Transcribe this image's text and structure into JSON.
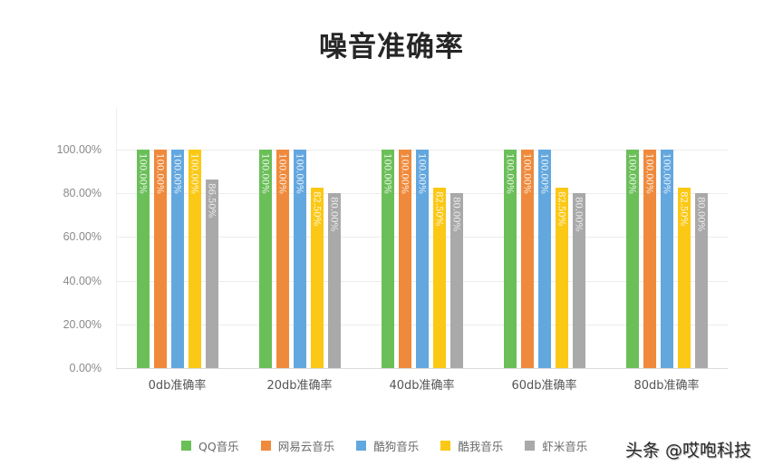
{
  "title": "噪音准确率",
  "watermark": "头条 @哎咆科技",
  "colors": {
    "QQ音乐": "#6bbf59",
    "网易云音乐": "#ef8a3c",
    "酷狗音乐": "#63a7df",
    "酷我音乐": "#fbc815",
    "虾米音乐": "#a9a9a9"
  },
  "y_axis": {
    "ticks": [
      "100.00%",
      "80.00%",
      "60.00%",
      "40.00%",
      "20.00%",
      "0.00%"
    ]
  },
  "x_axis": {
    "categories": [
      "0db准确率",
      "20db准确率",
      "40db准确率",
      "60db准确率",
      "80db准确率"
    ]
  },
  "legend": [
    {
      "label": "QQ音乐",
      "color": "#6bbf59"
    },
    {
      "label": "网易云音乐",
      "color": "#ef8a3c"
    },
    {
      "label": "酷狗音乐",
      "color": "#63a7df"
    },
    {
      "label": "酷我音乐",
      "color": "#fbc815"
    },
    {
      "label": "虾米音乐",
      "color": "#a9a9a9"
    }
  ],
  "chart_data": {
    "type": "bar",
    "title": "噪音准确率",
    "xlabel": "",
    "ylabel": "",
    "ylim": [
      0,
      100
    ],
    "y_tick_format": "percent_2dp",
    "grid": true,
    "legend_position": "bottom",
    "categories": [
      "0db准确率",
      "20db准确率",
      "40db准确率",
      "60db准确率",
      "80db准确率"
    ],
    "series": [
      {
        "name": "QQ音乐",
        "color": "#6bbf59",
        "values": [
          100.0,
          100.0,
          100.0,
          100.0,
          100.0
        ],
        "labels": [
          "100.00%",
          "100.00%",
          "100.00%",
          "100.00%",
          "100.00%"
        ]
      },
      {
        "name": "网易云音乐",
        "color": "#ef8a3c",
        "values": [
          100.0,
          100.0,
          100.0,
          100.0,
          100.0
        ],
        "labels": [
          "100.00%",
          "100.00%",
          "100.00%",
          "100.00%",
          "100.00%"
        ]
      },
      {
        "name": "酷狗音乐",
        "color": "#63a7df",
        "values": [
          100.0,
          100.0,
          100.0,
          100.0,
          100.0
        ],
        "labels": [
          "100.00%",
          "100.00%",
          "100.00%",
          "100.00%",
          "100.00%"
        ]
      },
      {
        "name": "酷我音乐",
        "color": "#fbc815",
        "values": [
          100.0,
          82.5,
          82.5,
          82.5,
          82.5
        ],
        "labels": [
          "100.00%",
          "82.50%",
          "82.50%",
          "82.50%",
          "82.50%"
        ]
      },
      {
        "name": "虾米音乐",
        "color": "#a9a9a9",
        "values": [
          86.5,
          80.0,
          80.0,
          80.0,
          80.0
        ],
        "labels": [
          "86.50%",
          "80.00%",
          "80.00%",
          "80.00%",
          "80.00%"
        ]
      }
    ]
  }
}
